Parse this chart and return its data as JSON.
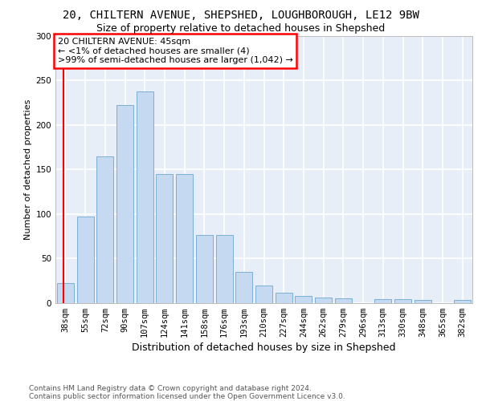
{
  "title1": "20, CHILTERN AVENUE, SHEPSHED, LOUGHBOROUGH, LE12 9BW",
  "title2": "Size of property relative to detached houses in Shepshed",
  "xlabel": "Distribution of detached houses by size in Shepshed",
  "ylabel": "Number of detached properties",
  "categories": [
    "38sqm",
    "55sqm",
    "72sqm",
    "90sqm",
    "107sqm",
    "124sqm",
    "141sqm",
    "158sqm",
    "176sqm",
    "193sqm",
    "210sqm",
    "227sqm",
    "244sqm",
    "262sqm",
    "279sqm",
    "296sqm",
    "313sqm",
    "330sqm",
    "348sqm",
    "365sqm",
    "382sqm"
  ],
  "values": [
    22,
    97,
    165,
    222,
    238,
    145,
    145,
    76,
    76,
    35,
    19,
    11,
    8,
    6,
    5,
    0,
    4,
    4,
    3,
    0,
    3
  ],
  "bar_color": "#c5d9f0",
  "bar_edge_color": "#7bafd4",
  "annotation_text": "20 CHILTERN AVENUE: 45sqm\n← <1% of detached houses are smaller (4)\n>99% of semi-detached houses are larger (1,042) →",
  "annotation_box_facecolor": "white",
  "annotation_box_edgecolor": "red",
  "ylim": [
    0,
    300
  ],
  "yticks": [
    0,
    50,
    100,
    150,
    200,
    250,
    300
  ],
  "footer": "Contains HM Land Registry data © Crown copyright and database right 2024.\nContains public sector information licensed under the Open Government Licence v3.0.",
  "bg_color": "#e8eef8",
  "grid_color": "white",
  "title1_fontsize": 10,
  "title2_fontsize": 9,
  "ylabel_fontsize": 8,
  "xlabel_fontsize": 9,
  "tick_fontsize": 7.5,
  "annot_fontsize": 8,
  "footer_fontsize": 6.5,
  "property_sqm": 45,
  "bin_edges": [
    38,
    55,
    72,
    90,
    107,
    124,
    141,
    158,
    176,
    193,
    210,
    227,
    244,
    262,
    279,
    296,
    313,
    330,
    348,
    365,
    382,
    399
  ]
}
